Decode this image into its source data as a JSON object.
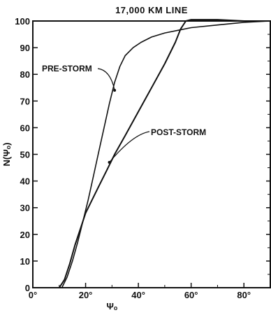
{
  "chart_data": {
    "type": "line",
    "title": "17,000 KM LINE",
    "xlabel": "Ψₒ",
    "ylabel": "N(Ψₒ)",
    "xlim": [
      0,
      90
    ],
    "ylim": [
      0,
      100
    ],
    "x_ticks": [
      0,
      20,
      40,
      60,
      80
    ],
    "x_tick_labels": [
      "0°",
      "20°",
      "40°",
      "60°",
      "80°"
    ],
    "y_ticks": [
      0,
      10,
      20,
      30,
      40,
      50,
      60,
      70,
      80,
      90,
      100
    ],
    "y_tick_labels": [
      "0",
      "10",
      "20",
      "30",
      "40",
      "50",
      "60",
      "70",
      "80",
      "90",
      "100"
    ],
    "grid": false,
    "series": [
      {
        "name": "PRE-STORM",
        "x": [
          11,
          13,
          15,
          17,
          19,
          21,
          23,
          25,
          27,
          29,
          31,
          33,
          35,
          38,
          41,
          45,
          50,
          55,
          60,
          70,
          80,
          90
        ],
        "y": [
          0,
          4,
          10,
          17,
          25,
          33,
          42,
          51,
          60,
          69,
          77,
          83,
          87,
          90,
          92,
          94,
          95.5,
          96.5,
          97.5,
          98.5,
          99.5,
          100
        ]
      },
      {
        "name": "POST-STORM",
        "x": [
          10,
          12,
          14,
          16,
          18,
          20,
          22,
          25,
          28,
          31,
          35,
          40,
          45,
          50,
          54,
          56,
          58,
          60,
          65,
          70,
          80,
          90
        ],
        "y": [
          0,
          3,
          9,
          16,
          22,
          28,
          32,
          38,
          44,
          50,
          57,
          66,
          75,
          84,
          92,
          97,
          100,
          100.5,
          100.5,
          100.5,
          100,
          100
        ]
      }
    ],
    "annotations": [
      {
        "text": "PRE-STORM",
        "series": "PRE-STORM",
        "x": 31,
        "y": 74
      },
      {
        "text": "POST-STORM",
        "series": "POST-STORM",
        "x": 29,
        "y": 47
      }
    ]
  }
}
